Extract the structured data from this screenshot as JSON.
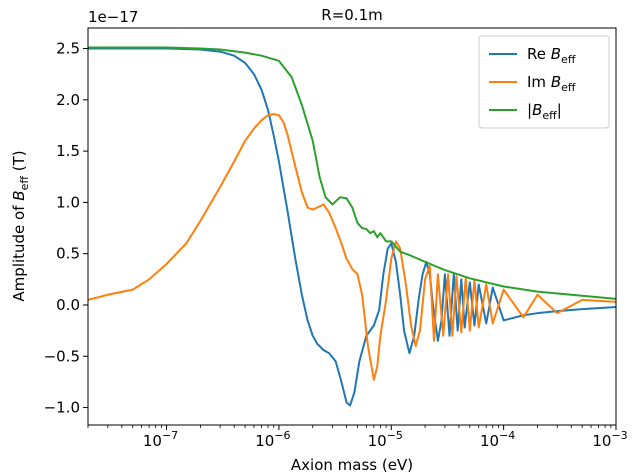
{
  "chart_data": {
    "type": "line",
    "title": "R=0.1m",
    "xlabel": "Axion mass (eV)",
    "ylabel_prefix": "Amplitude of ",
    "ylabel_var": "B",
    "ylabel_sub": "eff",
    "ylabel_suffix": " (T)",
    "y_offset_text": "1e−17",
    "x_scale": "log",
    "xlim": [
      2e-08,
      0.001
    ],
    "ylim": [
      -1.17,
      2.7
    ],
    "y_unit_multiplier": 1e-17,
    "x_tick_values": [
      1e-07,
      1e-06,
      1e-05,
      0.0001,
      0.001
    ],
    "x_tick_labels": [
      "10",
      "10",
      "10",
      "10",
      "10"
    ],
    "x_tick_exponents": [
      "−7",
      "−6",
      "−5",
      "−4",
      "−3"
    ],
    "y_ticks": [
      -1.0,
      -0.5,
      0.0,
      0.5,
      1.0,
      1.5,
      2.0,
      2.5
    ],
    "y_tick_labels": [
      "−1.0",
      "−0.5",
      "0.0",
      "0.5",
      "1.0",
      "1.5",
      "2.0",
      "2.5"
    ],
    "grid": false,
    "legend_position": "top-right",
    "series": [
      {
        "name_prefix": "Re ",
        "name_var": "B",
        "name_sub": "eff",
        "name_suffix": "",
        "color": "#1f77b4",
        "x": [
          2e-08,
          1e-07,
          2e-07,
          3e-07,
          4e-07,
          5e-07,
          6e-07,
          7e-07,
          8e-07,
          9e-07,
          1e-06,
          1.2e-06,
          1.4e-06,
          1.6e-06,
          1.8e-06,
          2e-06,
          2.2e-06,
          2.5e-06,
          2.8e-06,
          3.2e-06,
          3.6e-06,
          4e-06,
          4.3e-06,
          4.7e-06,
          5.2e-06,
          6e-06,
          7e-06,
          7.8e-06,
          8.5e-06,
          9.3e-06,
          1e-05,
          1.1e-05,
          1.2e-05,
          1.3e-05,
          1.45e-05,
          1.6e-05,
          1.75e-05,
          1.9e-05,
          2.05e-05,
          2.2e-05,
          2.35e-05,
          2.6e-05,
          2.8e-05,
          3e-05,
          3.3e-05,
          3.6e-05,
          3.9e-05,
          4.2e-05,
          4.5e-05,
          5e-05,
          5.5e-05,
          6e-05,
          7e-05,
          8e-05,
          0.0001,
          0.00015,
          0.0002,
          0.0003,
          0.0005,
          0.001
        ],
        "y": [
          2.5,
          2.5,
          2.49,
          2.47,
          2.43,
          2.36,
          2.25,
          2.1,
          1.9,
          1.65,
          1.4,
          0.9,
          0.45,
          0.1,
          -0.15,
          -0.3,
          -0.38,
          -0.44,
          -0.47,
          -0.55,
          -0.75,
          -0.95,
          -0.98,
          -0.85,
          -0.55,
          -0.3,
          -0.2,
          -0.05,
          0.3,
          0.55,
          0.6,
          0.42,
          0.1,
          -0.25,
          -0.47,
          -0.3,
          0.05,
          0.3,
          0.42,
          0.3,
          0.0,
          -0.35,
          -0.15,
          0.3,
          -0.3,
          0.3,
          -0.25,
          0.25,
          -0.22,
          0.22,
          -0.2,
          0.2,
          -0.18,
          0.17,
          -0.15,
          -0.1,
          -0.08,
          -0.06,
          -0.04,
          -0.02
        ]
      },
      {
        "name_prefix": "Im ",
        "name_var": "B",
        "name_sub": "eff",
        "name_suffix": "",
        "color": "#ff7f0e",
        "x": [
          2e-08,
          3e-08,
          5e-08,
          7e-08,
          1e-07,
          1.5e-07,
          2e-07,
          3e-07,
          4e-07,
          5e-07,
          6e-07,
          7e-07,
          8e-07,
          9e-07,
          1e-06,
          1.1e-06,
          1.2e-06,
          1.4e-06,
          1.6e-06,
          1.8e-06,
          2e-06,
          2.2e-06,
          2.5e-06,
          2.8e-06,
          3.2e-06,
          3.6e-06,
          4e-06,
          4.5e-06,
          5e-06,
          5.5e-06,
          6.2e-06,
          7e-06,
          7.5e-06,
          8e-06,
          9e-06,
          1e-05,
          1.1e-05,
          1.2e-05,
          1.35e-05,
          1.5e-05,
          1.65e-05,
          1.8e-05,
          2e-05,
          2.2e-05,
          2.4e-05,
          2.6e-05,
          2.9e-05,
          3.2e-05,
          3.5e-05,
          3.8e-05,
          4.2e-05,
          4.6e-05,
          5e-05,
          5.5e-05,
          6e-05,
          7e-05,
          8e-05,
          0.0001,
          0.00015,
          0.0002,
          0.0003,
          0.0005,
          0.001
        ],
        "y": [
          0.05,
          0.1,
          0.15,
          0.25,
          0.4,
          0.6,
          0.82,
          1.15,
          1.4,
          1.6,
          1.72,
          1.8,
          1.85,
          1.86,
          1.85,
          1.78,
          1.65,
          1.35,
          1.1,
          0.95,
          0.93,
          0.95,
          0.98,
          0.9,
          0.75,
          0.6,
          0.45,
          0.35,
          0.3,
          0.1,
          -0.4,
          -0.73,
          -0.6,
          -0.3,
          0.05,
          0.45,
          0.62,
          0.55,
          0.2,
          -0.2,
          -0.4,
          -0.25,
          0.25,
          0.38,
          -0.35,
          0.3,
          -0.3,
          0.3,
          -0.3,
          0.28,
          -0.27,
          0.26,
          -0.25,
          0.24,
          -0.22,
          0.2,
          -0.18,
          0.15,
          -0.12,
          0.1,
          -0.08,
          0.05,
          0.03
        ]
      },
      {
        "name_prefix": "|",
        "name_var": "B",
        "name_sub": "eff",
        "name_suffix": "|",
        "color": "#2ca02c",
        "x": [
          2e-08,
          1e-07,
          2e-07,
          3e-07,
          5e-07,
          7e-07,
          1e-06,
          1.3e-06,
          1.6e-06,
          2e-06,
          2.3e-06,
          2.6e-06,
          3e-06,
          3.5e-06,
          4e-06,
          4.5e-06,
          5e-06,
          5.5e-06,
          6e-06,
          6.5e-06,
          7e-06,
          7.5e-06,
          8e-06,
          9e-06,
          1e-05,
          1.2e-05,
          1.5e-05,
          2e-05,
          3e-05,
          5e-05,
          0.0001,
          0.0002,
          0.0005,
          0.001
        ],
        "y": [
          2.51,
          2.51,
          2.5,
          2.49,
          2.46,
          2.43,
          2.38,
          2.22,
          1.95,
          1.6,
          1.25,
          1.05,
          0.98,
          1.05,
          1.04,
          0.95,
          0.8,
          0.75,
          0.74,
          0.7,
          0.72,
          0.66,
          0.7,
          0.62,
          0.62,
          0.52,
          0.48,
          0.42,
          0.34,
          0.26,
          0.18,
          0.13,
          0.09,
          0.06
        ]
      }
    ]
  }
}
